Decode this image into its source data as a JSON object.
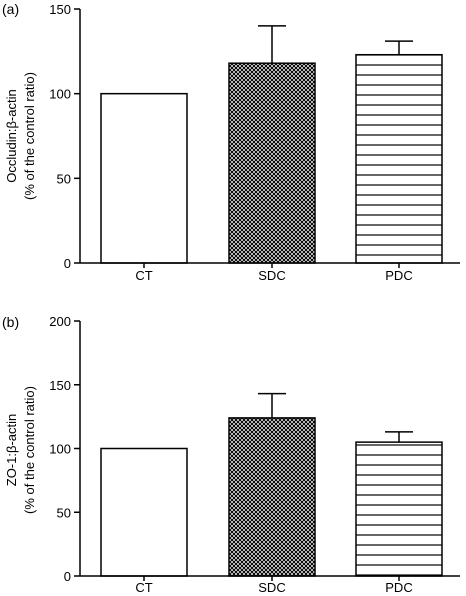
{
  "chart_data": [
    {
      "type": "bar",
      "panel_label": "(a)",
      "categories": [
        "CT",
        "SDC",
        "PDC"
      ],
      "values": [
        100,
        118,
        123
      ],
      "error": [
        null,
        22,
        8
      ],
      "patterns": [
        "none",
        "crosshatch",
        "hlines"
      ],
      "ylabel_line1": "Occludin:β-actin",
      "ylabel_line2": "(% of the control ratio)",
      "ylim": [
        0,
        150
      ],
      "yticks": [
        0,
        50,
        100,
        150
      ],
      "grid": false
    },
    {
      "type": "bar",
      "panel_label": "(b)",
      "categories": [
        "CT",
        "SDC",
        "PDC"
      ],
      "values": [
        100,
        124,
        105
      ],
      "error": [
        null,
        19,
        8
      ],
      "patterns": [
        "none",
        "crosshatch",
        "hlines"
      ],
      "ylabel_line1": "ZO-1:β-actin",
      "ylabel_line2": "(% of the control ratio)",
      "ylim": [
        0,
        200
      ],
      "yticks": [
        0,
        50,
        100,
        150,
        200
      ],
      "grid": false
    }
  ]
}
